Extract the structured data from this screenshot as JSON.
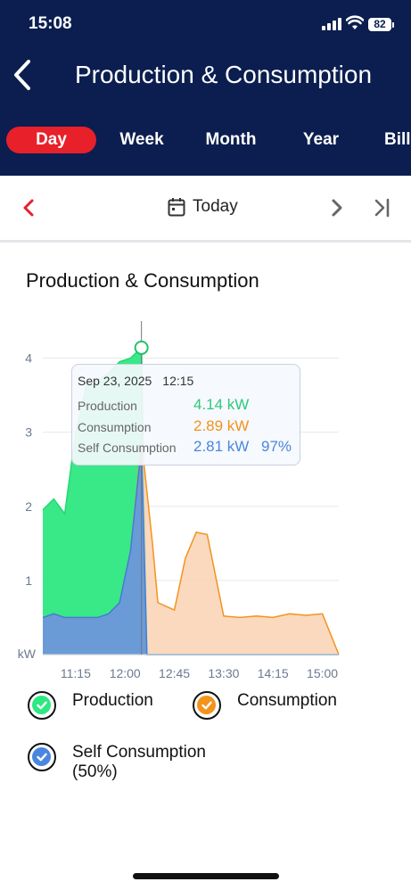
{
  "status_bar": {
    "time": "15:08",
    "battery": "82"
  },
  "header": {
    "title": "Production & Consumption"
  },
  "tabs": [
    {
      "label": "Day",
      "active": true
    },
    {
      "label": "Week",
      "active": false
    },
    {
      "label": "Month",
      "active": false
    },
    {
      "label": "Year",
      "active": false
    },
    {
      "label": "Bill",
      "active": false
    }
  ],
  "date_nav": {
    "label": "Today"
  },
  "section": {
    "title": "Production & Consumption"
  },
  "tooltip": {
    "date": "Sep 23, 2025",
    "time": "12:15",
    "production_label": "Production",
    "production_value": "4.14 kW",
    "consumption_label": "Consumption",
    "consumption_value": "2.89 kW",
    "self_label": "Self Consumption",
    "self_value": "2.81 kW",
    "self_pct": "97%"
  },
  "legend": {
    "production": "Production",
    "consumption": "Consumption",
    "self_line1": "Self Consumption",
    "self_line2": "(50%)"
  },
  "colors": {
    "header_bg": "#0b1e4f",
    "accent_red": "#e8202a",
    "production": "#2ee882",
    "consumption": "#f3931c",
    "self_consumption": "#4a86e0"
  },
  "chart_data": {
    "type": "area",
    "ylabel": "kW",
    "ylim": [
      0,
      4.5
    ],
    "yticks": [
      1,
      2,
      3,
      4
    ],
    "x_ticks": [
      "11:15",
      "12:00",
      "12:45",
      "13:30",
      "14:15",
      "15:00"
    ],
    "x": [
      "10:45",
      "10:55",
      "11:05",
      "11:15",
      "11:25",
      "11:35",
      "11:45",
      "11:55",
      "12:05",
      "12:15",
      "12:20",
      "12:25",
      "12:30",
      "12:45",
      "12:55",
      "13:05",
      "13:15",
      "13:30",
      "13:45",
      "14:00",
      "14:15",
      "14:30",
      "14:45",
      "15:00",
      "15:15"
    ],
    "series": [
      {
        "name": "Production",
        "values": [
          1.95,
          2.1,
          1.9,
          3.0,
          3.65,
          3.7,
          3.8,
          3.95,
          4.0,
          4.14,
          0.0,
          0,
          0,
          0,
          0,
          0,
          0,
          0,
          0,
          0,
          0,
          0,
          0,
          0,
          0
        ]
      },
      {
        "name": "Consumption",
        "values": [
          0.5,
          0.55,
          0.5,
          0.5,
          0.5,
          0.5,
          0.55,
          0.7,
          1.4,
          2.89,
          2.2,
          1.5,
          0.7,
          0.6,
          1.3,
          1.65,
          1.62,
          0.52,
          0.5,
          0.52,
          0.5,
          0.55,
          0.53,
          0.55,
          0.0
        ]
      },
      {
        "name": "Self Consumption",
        "values": [
          0.5,
          0.55,
          0.5,
          0.5,
          0.5,
          0.5,
          0.55,
          0.7,
          1.4,
          2.81,
          0.0,
          0,
          0,
          0,
          0,
          0,
          0,
          0,
          0,
          0,
          0,
          0,
          0,
          0,
          0
        ]
      }
    ],
    "selected_x": "12:15",
    "grid": true
  }
}
